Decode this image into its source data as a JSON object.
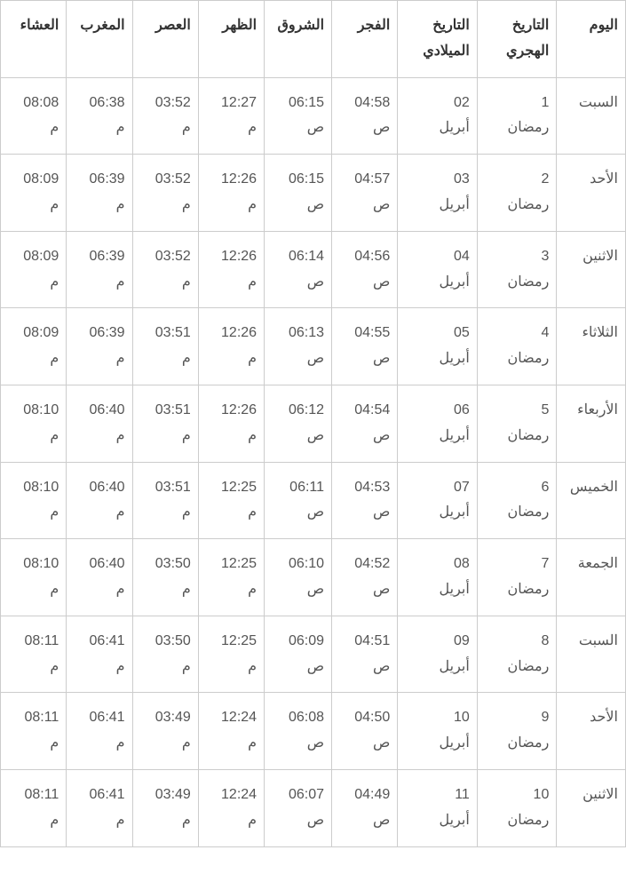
{
  "table": {
    "text_color": "#555555",
    "header_text_color": "#333333",
    "border_color": "#cccccc",
    "background_color": "#ffffff",
    "font_size": 16,
    "columns": [
      {
        "key": "day",
        "label": "اليوم"
      },
      {
        "key": "hijri",
        "label_line1": "التاريخ",
        "label_line2": "الهجري"
      },
      {
        "key": "greg",
        "label_line1": "التاريخ",
        "label_line2": "الميلادي"
      },
      {
        "key": "fajr",
        "label": "الفجر"
      },
      {
        "key": "sunrise",
        "label": "الشروق"
      },
      {
        "key": "dhuhr",
        "label": "الظهر"
      },
      {
        "key": "asr",
        "label": "العصر"
      },
      {
        "key": "maghrib",
        "label": "المغرب"
      },
      {
        "key": "isha",
        "label": "العشاء"
      }
    ],
    "rows": [
      {
        "day": "السبت",
        "hijri_n": "1",
        "hijri_m": "رمضان",
        "greg_n": "02",
        "greg_m": "أبريل",
        "fajr_t": "04:58",
        "fajr_p": "ص",
        "sunrise_t": "06:15",
        "sunrise_p": "ص",
        "dhuhr_t": "12:27",
        "dhuhr_p": "م",
        "asr_t": "03:52",
        "asr_p": "م",
        "maghrib_t": "06:38",
        "maghrib_p": "م",
        "isha_t": "08:08",
        "isha_p": "م"
      },
      {
        "day": "الأحد",
        "hijri_n": "2",
        "hijri_m": "رمضان",
        "greg_n": "03",
        "greg_m": "أبريل",
        "fajr_t": "04:57",
        "fajr_p": "ص",
        "sunrise_t": "06:15",
        "sunrise_p": "ص",
        "dhuhr_t": "12:26",
        "dhuhr_p": "م",
        "asr_t": "03:52",
        "asr_p": "م",
        "maghrib_t": "06:39",
        "maghrib_p": "م",
        "isha_t": "08:09",
        "isha_p": "م"
      },
      {
        "day": "الاثنين",
        "hijri_n": "3",
        "hijri_m": "رمضان",
        "greg_n": "04",
        "greg_m": "أبريل",
        "fajr_t": "04:56",
        "fajr_p": "ص",
        "sunrise_t": "06:14",
        "sunrise_p": "ص",
        "dhuhr_t": "12:26",
        "dhuhr_p": "م",
        "asr_t": "03:52",
        "asr_p": "م",
        "maghrib_t": "06:39",
        "maghrib_p": "م",
        "isha_t": "08:09",
        "isha_p": "م"
      },
      {
        "day": "الثلاثاء",
        "hijri_n": "4",
        "hijri_m": "رمضان",
        "greg_n": "05",
        "greg_m": "أبريل",
        "fajr_t": "04:55",
        "fajr_p": "ص",
        "sunrise_t": "06:13",
        "sunrise_p": "ص",
        "dhuhr_t": "12:26",
        "dhuhr_p": "م",
        "asr_t": "03:51",
        "asr_p": "م",
        "maghrib_t": "06:39",
        "maghrib_p": "م",
        "isha_t": "08:09",
        "isha_p": "م"
      },
      {
        "day": "الأربعاء",
        "hijri_n": "5",
        "hijri_m": "رمضان",
        "greg_n": "06",
        "greg_m": "أبريل",
        "fajr_t": "04:54",
        "fajr_p": "ص",
        "sunrise_t": "06:12",
        "sunrise_p": "ص",
        "dhuhr_t": "12:26",
        "dhuhr_p": "م",
        "asr_t": "03:51",
        "asr_p": "م",
        "maghrib_t": "06:40",
        "maghrib_p": "م",
        "isha_t": "08:10",
        "isha_p": "م"
      },
      {
        "day": "الخميس",
        "hijri_n": "6",
        "hijri_m": "رمضان",
        "greg_n": "07",
        "greg_m": "أبريل",
        "fajr_t": "04:53",
        "fajr_p": "ص",
        "sunrise_t": "06:11",
        "sunrise_p": "ص",
        "dhuhr_t": "12:25",
        "dhuhr_p": "م",
        "asr_t": "03:51",
        "asr_p": "م",
        "maghrib_t": "06:40",
        "maghrib_p": "م",
        "isha_t": "08:10",
        "isha_p": "م"
      },
      {
        "day": "الجمعة",
        "hijri_n": "7",
        "hijri_m": "رمضان",
        "greg_n": "08",
        "greg_m": "أبريل",
        "fajr_t": "04:52",
        "fajr_p": "ص",
        "sunrise_t": "06:10",
        "sunrise_p": "ص",
        "dhuhr_t": "12:25",
        "dhuhr_p": "م",
        "asr_t": "03:50",
        "asr_p": "م",
        "maghrib_t": "06:40",
        "maghrib_p": "م",
        "isha_t": "08:10",
        "isha_p": "م"
      },
      {
        "day": "السبت",
        "hijri_n": "8",
        "hijri_m": "رمضان",
        "greg_n": "09",
        "greg_m": "أبريل",
        "fajr_t": "04:51",
        "fajr_p": "ص",
        "sunrise_t": "06:09",
        "sunrise_p": "ص",
        "dhuhr_t": "12:25",
        "dhuhr_p": "م",
        "asr_t": "03:50",
        "asr_p": "م",
        "maghrib_t": "06:41",
        "maghrib_p": "م",
        "isha_t": "08:11",
        "isha_p": "م"
      },
      {
        "day": "الأحد",
        "hijri_n": "9",
        "hijri_m": "رمضان",
        "greg_n": "10",
        "greg_m": "أبريل",
        "fajr_t": "04:50",
        "fajr_p": "ص",
        "sunrise_t": "06:08",
        "sunrise_p": "ص",
        "dhuhr_t": "12:24",
        "dhuhr_p": "م",
        "asr_t": "03:49",
        "asr_p": "م",
        "maghrib_t": "06:41",
        "maghrib_p": "م",
        "isha_t": "08:11",
        "isha_p": "م"
      },
      {
        "day": "الاثنين",
        "hijri_n": "10",
        "hijri_m": "رمضان",
        "greg_n": "11",
        "greg_m": "أبريل",
        "fajr_t": "04:49",
        "fajr_p": "ص",
        "sunrise_t": "06:07",
        "sunrise_p": "ص",
        "dhuhr_t": "12:24",
        "dhuhr_p": "م",
        "asr_t": "03:49",
        "asr_p": "م",
        "maghrib_t": "06:41",
        "maghrib_p": "م",
        "isha_t": "08:11",
        "isha_p": "م"
      }
    ]
  }
}
